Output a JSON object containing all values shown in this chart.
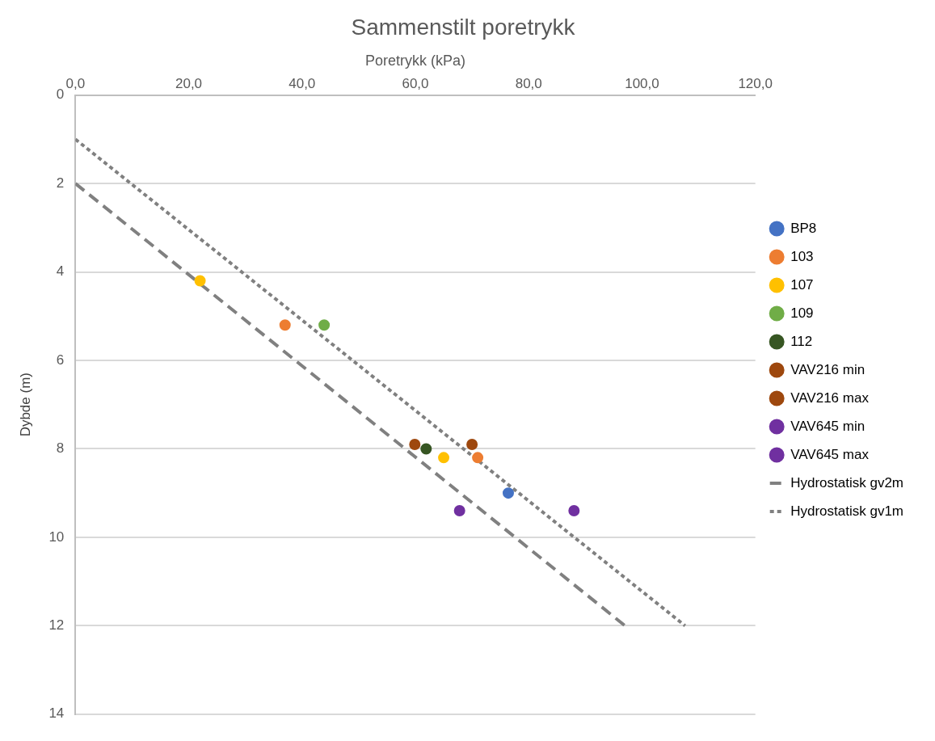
{
  "chart_data": {
    "type": "scatter",
    "title": "Sammenstilt poretrykk",
    "xlabel": "Poretrykk (kPa)",
    "ylabel": "Dybde (m)",
    "xlim": [
      0,
      120
    ],
    "xticks": [
      {
        "value": 0,
        "label": "0,0"
      },
      {
        "value": 20,
        "label": "20,0"
      },
      {
        "value": 40,
        "label": "40,0"
      },
      {
        "value": 60,
        "label": "60,0"
      },
      {
        "value": 80,
        "label": "80,0"
      },
      {
        "value": 100,
        "label": "100,0"
      },
      {
        "value": 120,
        "label": "120,0"
      }
    ],
    "ylim": [
      14,
      0
    ],
    "yticks": [
      0,
      2,
      4,
      6,
      8,
      10,
      12,
      14
    ],
    "grid": "y",
    "legend": "right",
    "marker": "circle",
    "series": [
      {
        "name": "BP8",
        "color": "#4472c4",
        "x": [
          76.4
        ],
        "values": [
          9.0
        ]
      },
      {
        "name": "103",
        "color": "#ed7d31",
        "x": [
          37.0,
          71.0
        ],
        "values": [
          5.2,
          8.2
        ]
      },
      {
        "name": "107",
        "color": "#ffc000",
        "x": [
          22.0,
          65.0
        ],
        "values": [
          4.2,
          8.2
        ]
      },
      {
        "name": "109",
        "color": "#70ad47",
        "x": [
          43.9
        ],
        "values": [
          5.2
        ]
      },
      {
        "name": "112",
        "color": "#375623",
        "x": [
          61.9
        ],
        "values": [
          8.0
        ]
      },
      {
        "name": "VAV216 min",
        "color": "#9e480e",
        "x": [
          59.9
        ],
        "values": [
          7.9
        ]
      },
      {
        "name": "VAV216 max",
        "color": "#9e480e",
        "x": [
          70.0
        ],
        "values": [
          7.9
        ]
      },
      {
        "name": "VAV645 min",
        "color": "#7030a0",
        "x": [
          67.8
        ],
        "values": [
          9.4
        ]
      },
      {
        "name": "VAV645 max",
        "color": "#7030a0",
        "x": [
          88.0
        ],
        "values": [
          9.4
        ]
      },
      {
        "name": "Hydrostatisk gv2m",
        "type": "line",
        "color": "#808080",
        "line_style": "dashed",
        "marker": "none",
        "x": [
          0,
          97.0
        ],
        "values": [
          2,
          12
        ]
      },
      {
        "name": "Hydrostatisk gv1m",
        "type": "line",
        "color": "#808080",
        "line_style": "dotted",
        "marker": "none",
        "x": [
          0,
          107.6
        ],
        "values": [
          1,
          12
        ]
      }
    ]
  }
}
